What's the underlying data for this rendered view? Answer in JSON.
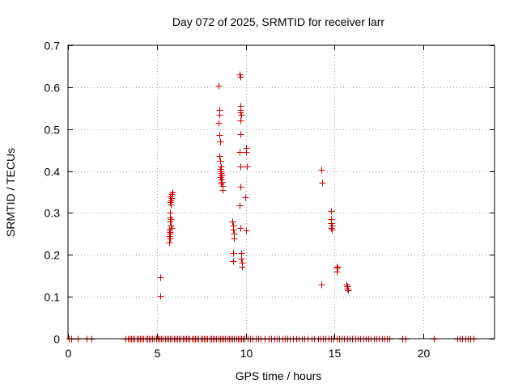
{
  "chart_data": {
    "type": "scatter",
    "title": "Day 072 of 2025, SRMTID for receiver larr",
    "xlabel": "GPS time / hours",
    "ylabel": "SRMTID / TECUs",
    "xlim": [
      0,
      24
    ],
    "ylim": [
      0,
      0.7
    ],
    "xticks": [
      0,
      5,
      10,
      15,
      20
    ],
    "yticks": [
      0,
      0.1,
      0.2,
      0.3,
      0.4,
      0.5,
      0.6,
      0.7
    ],
    "xtick_labels": [
      "0",
      "5",
      "10",
      "15",
      "20"
    ],
    "ytick_labels": [
      "0",
      "0.1",
      "0.2",
      "0.3",
      "0.4",
      "0.5",
      "0.6",
      "0.7"
    ],
    "grid": true,
    "marker": "+",
    "marker_color": "#cc0000",
    "series": [
      {
        "name": "SRMTID",
        "points": [
          [
            0.05,
            0
          ],
          [
            0.2,
            0
          ],
          [
            0.55,
            0
          ],
          [
            1.05,
            0
          ],
          [
            1.3,
            0
          ],
          [
            3.25,
            0
          ],
          [
            3.35,
            0
          ],
          [
            3.45,
            0
          ],
          [
            3.55,
            0
          ],
          [
            3.65,
            0
          ],
          [
            3.75,
            0
          ],
          [
            3.85,
            0
          ],
          [
            3.95,
            0
          ],
          [
            4.05,
            0
          ],
          [
            4.15,
            0
          ],
          [
            4.25,
            0
          ],
          [
            4.35,
            0
          ],
          [
            4.45,
            0
          ],
          [
            4.55,
            0
          ],
          [
            4.65,
            0
          ],
          [
            4.75,
            0
          ],
          [
            4.85,
            0
          ],
          [
            4.95,
            0
          ],
          [
            5.05,
            0
          ],
          [
            5.15,
            0
          ],
          [
            5.25,
            0
          ],
          [
            5.35,
            0
          ],
          [
            5.45,
            0
          ],
          [
            5.55,
            0
          ],
          [
            5.65,
            0
          ],
          [
            5.75,
            0
          ],
          [
            5.85,
            0
          ],
          [
            5.95,
            0
          ],
          [
            6.05,
            0
          ],
          [
            6.15,
            0
          ],
          [
            6.25,
            0
          ],
          [
            6.35,
            0
          ],
          [
            6.45,
            0
          ],
          [
            6.55,
            0
          ],
          [
            6.65,
            0
          ],
          [
            6.75,
            0
          ],
          [
            6.85,
            0
          ],
          [
            6.95,
            0
          ],
          [
            7.05,
            0
          ],
          [
            7.15,
            0
          ],
          [
            7.25,
            0
          ],
          [
            7.35,
            0
          ],
          [
            7.45,
            0
          ],
          [
            7.55,
            0
          ],
          [
            7.65,
            0
          ],
          [
            7.75,
            0
          ],
          [
            7.85,
            0
          ],
          [
            7.95,
            0
          ],
          [
            8.05,
            0
          ],
          [
            8.15,
            0
          ],
          [
            8.25,
            0
          ],
          [
            8.35,
            0
          ],
          [
            8.45,
            0
          ],
          [
            8.55,
            0
          ],
          [
            8.65,
            0
          ],
          [
            8.75,
            0
          ],
          [
            8.85,
            0
          ],
          [
            8.95,
            0
          ],
          [
            9.05,
            0
          ],
          [
            9.15,
            0
          ],
          [
            9.25,
            0
          ],
          [
            9.35,
            0
          ],
          [
            9.45,
            0
          ],
          [
            9.55,
            0
          ],
          [
            9.65,
            0
          ],
          [
            9.75,
            0
          ],
          [
            9.85,
            0
          ],
          [
            9.95,
            0
          ],
          [
            10.1,
            0
          ],
          [
            10.25,
            0
          ],
          [
            10.4,
            0
          ],
          [
            10.55,
            0
          ],
          [
            10.7,
            0
          ],
          [
            10.85,
            0
          ],
          [
            11.05,
            0
          ],
          [
            11.3,
            0
          ],
          [
            11.45,
            0
          ],
          [
            11.6,
            0
          ],
          [
            11.75,
            0
          ],
          [
            11.9,
            0
          ],
          [
            12.05,
            0
          ],
          [
            12.2,
            0
          ],
          [
            12.35,
            0
          ],
          [
            12.5,
            0
          ],
          [
            12.65,
            0
          ],
          [
            12.85,
            0
          ],
          [
            13.0,
            0
          ],
          [
            13.15,
            0
          ],
          [
            13.3,
            0
          ],
          [
            13.5,
            0
          ],
          [
            13.7,
            0
          ],
          [
            13.85,
            0
          ],
          [
            14.05,
            0
          ],
          [
            14.2,
            0
          ],
          [
            14.35,
            0
          ],
          [
            14.5,
            0
          ],
          [
            14.65,
            0
          ],
          [
            14.8,
            0
          ],
          [
            14.95,
            0
          ],
          [
            15.1,
            0
          ],
          [
            15.25,
            0
          ],
          [
            15.4,
            0
          ],
          [
            15.55,
            0
          ],
          [
            15.7,
            0
          ],
          [
            15.85,
            0
          ],
          [
            16.0,
            0
          ],
          [
            16.15,
            0
          ],
          [
            16.3,
            0
          ],
          [
            16.45,
            0
          ],
          [
            16.6,
            0
          ],
          [
            16.75,
            0
          ],
          [
            16.9,
            0
          ],
          [
            17.05,
            0
          ],
          [
            17.2,
            0
          ],
          [
            17.35,
            0
          ],
          [
            17.5,
            0
          ],
          [
            17.65,
            0
          ],
          [
            17.8,
            0
          ],
          [
            17.95,
            0
          ],
          [
            18.1,
            0
          ],
          [
            18.8,
            0
          ],
          [
            19.0,
            0
          ],
          [
            20.6,
            0
          ],
          [
            21.9,
            0
          ],
          [
            22.05,
            0
          ],
          [
            22.2,
            0
          ],
          [
            22.35,
            0
          ],
          [
            22.5,
            0
          ],
          [
            22.65,
            0
          ],
          [
            22.8,
            0
          ],
          [
            5.2,
            0.147
          ],
          [
            5.2,
            0.103
          ],
          [
            5.7,
            0.23
          ],
          [
            5.72,
            0.24
          ],
          [
            5.74,
            0.25
          ],
          [
            5.76,
            0.255
          ],
          [
            5.7,
            0.26
          ],
          [
            5.78,
            0.27
          ],
          [
            5.72,
            0.28
          ],
          [
            5.8,
            0.285
          ],
          [
            5.74,
            0.29
          ],
          [
            5.76,
            0.3
          ],
          [
            5.78,
            0.32
          ],
          [
            5.72,
            0.325
          ],
          [
            5.8,
            0.33
          ],
          [
            5.82,
            0.335
          ],
          [
            5.74,
            0.34
          ],
          [
            5.84,
            0.345
          ],
          [
            5.86,
            0.35
          ],
          [
            5.7,
            0.245
          ],
          [
            5.82,
            0.265
          ],
          [
            8.45,
            0.603
          ],
          [
            8.5,
            0.545
          ],
          [
            8.52,
            0.535
          ],
          [
            8.48,
            0.515
          ],
          [
            8.5,
            0.485
          ],
          [
            8.55,
            0.47
          ],
          [
            8.52,
            0.435
          ],
          [
            8.58,
            0.425
          ],
          [
            8.6,
            0.41
          ],
          [
            8.55,
            0.405
          ],
          [
            8.62,
            0.4
          ],
          [
            8.6,
            0.395
          ],
          [
            8.65,
            0.39
          ],
          [
            8.58,
            0.385
          ],
          [
            8.62,
            0.38
          ],
          [
            8.65,
            0.375
          ],
          [
            8.6,
            0.37
          ],
          [
            8.7,
            0.365
          ],
          [
            8.7,
            0.355
          ],
          [
            9.25,
            0.28
          ],
          [
            9.28,
            0.27
          ],
          [
            9.3,
            0.26
          ],
          [
            9.32,
            0.25
          ],
          [
            9.35,
            0.24
          ],
          [
            9.3,
            0.205
          ],
          [
            9.28,
            0.185
          ],
          [
            9.65,
            0.63
          ],
          [
            9.7,
            0.625
          ],
          [
            9.7,
            0.555
          ],
          [
            9.72,
            0.545
          ],
          [
            9.68,
            0.54
          ],
          [
            9.74,
            0.535
          ],
          [
            9.7,
            0.52
          ],
          [
            9.72,
            0.488
          ],
          [
            9.65,
            0.445
          ],
          [
            9.7,
            0.41
          ],
          [
            9.68,
            0.362
          ],
          [
            9.65,
            0.318
          ],
          [
            9.7,
            0.265
          ],
          [
            9.75,
            0.205
          ],
          [
            9.75,
            0.19
          ],
          [
            9.78,
            0.182
          ],
          [
            9.8,
            0.172
          ],
          [
            10.0,
            0.455
          ],
          [
            10.02,
            0.445
          ],
          [
            10.05,
            0.41
          ],
          [
            9.98,
            0.338
          ],
          [
            10.02,
            0.258
          ],
          [
            14.25,
            0.403
          ],
          [
            14.3,
            0.373
          ],
          [
            14.25,
            0.13
          ],
          [
            14.78,
            0.305
          ],
          [
            14.8,
            0.285
          ],
          [
            14.82,
            0.275
          ],
          [
            14.85,
            0.27
          ],
          [
            14.8,
            0.265
          ],
          [
            14.85,
            0.26
          ],
          [
            15.1,
            0.172
          ],
          [
            15.15,
            0.17
          ],
          [
            15.12,
            0.16
          ],
          [
            15.65,
            0.13
          ],
          [
            15.7,
            0.125
          ],
          [
            15.72,
            0.12
          ],
          [
            15.75,
            0.115
          ]
        ]
      }
    ]
  }
}
